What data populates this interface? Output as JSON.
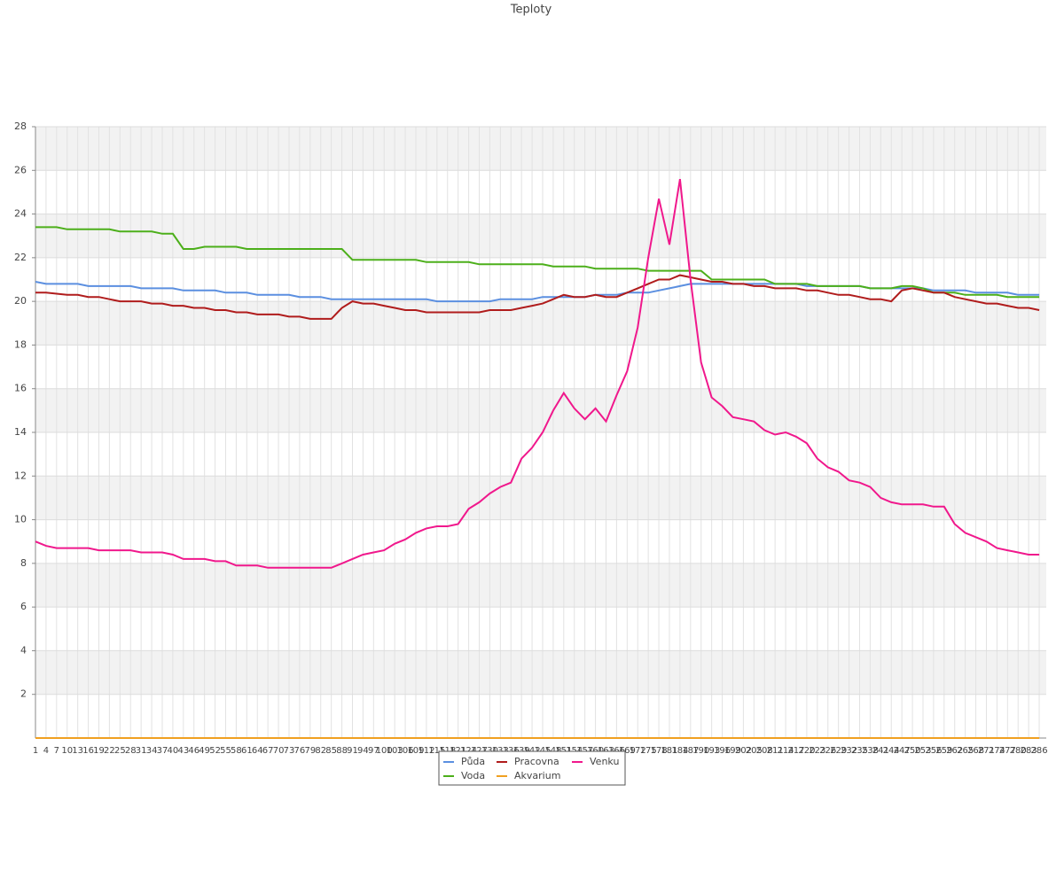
{
  "chart_data": {
    "type": "line",
    "title": "Teploty",
    "x": [
      1,
      4,
      7,
      10,
      13,
      16,
      19,
      22,
      25,
      28,
      31,
      34,
      37,
      40,
      43,
      46,
      49,
      52,
      55,
      58,
      61,
      64,
      67,
      70,
      73,
      76,
      79,
      82,
      85,
      88,
      91,
      94,
      97,
      100,
      103,
      106,
      109,
      112,
      115,
      118,
      121,
      124,
      127,
      130,
      133,
      136,
      139,
      142,
      145,
      148,
      151,
      154,
      157,
      160,
      163,
      166,
      169,
      172,
      175,
      178,
      181,
      184,
      187,
      190,
      193,
      196,
      199,
      202,
      205,
      208,
      211,
      214,
      217,
      220,
      223,
      226,
      229,
      232,
      235,
      238,
      241,
      244,
      247,
      250,
      253,
      256,
      259,
      262,
      265,
      268,
      271,
      274,
      277,
      280,
      283,
      286
    ],
    "xlim": [
      1,
      288
    ],
    "ylim": [
      0,
      28
    ],
    "yticks": [
      2,
      4,
      6,
      8,
      10,
      12,
      14,
      16,
      18,
      20,
      22,
      24,
      26,
      28
    ],
    "grid": true,
    "series": [
      {
        "name": "Půda",
        "color": "#5b8fe0",
        "values": [
          20.9,
          20.8,
          20.8,
          20.8,
          20.8,
          20.7,
          20.7,
          20.7,
          20.7,
          20.7,
          20.6,
          20.6,
          20.6,
          20.6,
          20.5,
          20.5,
          20.5,
          20.5,
          20.4,
          20.4,
          20.4,
          20.3,
          20.3,
          20.3,
          20.3,
          20.2,
          20.2,
          20.2,
          20.1,
          20.1,
          20.1,
          20.1,
          20.1,
          20.1,
          20.1,
          20.1,
          20.1,
          20.1,
          20.0,
          20.0,
          20.0,
          20.0,
          20.0,
          20.0,
          20.1,
          20.1,
          20.1,
          20.1,
          20.2,
          20.2,
          20.2,
          20.2,
          20.2,
          20.3,
          20.3,
          20.3,
          20.4,
          20.4,
          20.4,
          20.5,
          20.6,
          20.7,
          20.8,
          20.8,
          20.8,
          20.8,
          20.8,
          20.8,
          20.8,
          20.8,
          20.8,
          20.8,
          20.8,
          20.7,
          20.7,
          20.7,
          20.7,
          20.7,
          20.7,
          20.6,
          20.6,
          20.6,
          20.6,
          20.6,
          20.6,
          20.5,
          20.5,
          20.5,
          20.5,
          20.4,
          20.4,
          20.4,
          20.4,
          20.3,
          20.3,
          20.3
        ]
      },
      {
        "name": "Voda",
        "color": "#4caf1a",
        "values": [
          23.4,
          23.4,
          23.4,
          23.3,
          23.3,
          23.3,
          23.3,
          23.3,
          23.2,
          23.2,
          23.2,
          23.2,
          23.1,
          23.1,
          22.4,
          22.4,
          22.5,
          22.5,
          22.5,
          22.5,
          22.4,
          22.4,
          22.4,
          22.4,
          22.4,
          22.4,
          22.4,
          22.4,
          22.4,
          22.4,
          21.9,
          21.9,
          21.9,
          21.9,
          21.9,
          21.9,
          21.9,
          21.8,
          21.8,
          21.8,
          21.8,
          21.8,
          21.7,
          21.7,
          21.7,
          21.7,
          21.7,
          21.7,
          21.7,
          21.6,
          21.6,
          21.6,
          21.6,
          21.5,
          21.5,
          21.5,
          21.5,
          21.5,
          21.4,
          21.4,
          21.4,
          21.4,
          21.4,
          21.4,
          21.0,
          21.0,
          21.0,
          21.0,
          21.0,
          21.0,
          20.8,
          20.8,
          20.8,
          20.8,
          20.7,
          20.7,
          20.7,
          20.7,
          20.7,
          20.6,
          20.6,
          20.6,
          20.7,
          20.7,
          20.6,
          20.4,
          20.4,
          20.4,
          20.3,
          20.3,
          20.3,
          20.3,
          20.2,
          20.2,
          20.2,
          20.2
        ]
      },
      {
        "name": "Pracovna",
        "color": "#b01c1c",
        "values": [
          20.4,
          20.4,
          20.35,
          20.3,
          20.3,
          20.2,
          20.2,
          20.1,
          20.0,
          20.0,
          20.0,
          19.9,
          19.9,
          19.8,
          19.8,
          19.7,
          19.7,
          19.6,
          19.6,
          19.5,
          19.5,
          19.4,
          19.4,
          19.4,
          19.3,
          19.3,
          19.2,
          19.2,
          19.2,
          19.7,
          20.0,
          19.9,
          19.9,
          19.8,
          19.7,
          19.6,
          19.6,
          19.5,
          19.5,
          19.5,
          19.5,
          19.5,
          19.5,
          19.6,
          19.6,
          19.6,
          19.7,
          19.8,
          19.9,
          20.1,
          20.3,
          20.2,
          20.2,
          20.3,
          20.2,
          20.2,
          20.4,
          20.6,
          20.8,
          21.0,
          21.0,
          21.2,
          21.1,
          21.0,
          20.9,
          20.9,
          20.8,
          20.8,
          20.7,
          20.7,
          20.6,
          20.6,
          20.6,
          20.5,
          20.5,
          20.4,
          20.3,
          20.3,
          20.2,
          20.1,
          20.1,
          20.0,
          20.5,
          20.6,
          20.5,
          20.4,
          20.4,
          20.2,
          20.1,
          20.0,
          19.9,
          19.9,
          19.8,
          19.7,
          19.7,
          19.6
        ]
      },
      {
        "name": "Akvarium",
        "color": "#f0a020",
        "values": [
          0,
          0,
          0,
          0,
          0,
          0,
          0,
          0,
          0,
          0,
          0,
          0,
          0,
          0,
          0,
          0,
          0,
          0,
          0,
          0,
          0,
          0,
          0,
          0,
          0,
          0,
          0,
          0,
          0,
          0,
          0,
          0,
          0,
          0,
          0,
          0,
          0,
          0,
          0,
          0,
          0,
          0,
          0,
          0,
          0,
          0,
          0,
          0,
          0,
          0,
          0,
          0,
          0,
          0,
          0,
          0,
          0,
          0,
          0,
          0,
          0,
          0,
          0,
          0,
          0,
          0,
          0,
          0,
          0,
          0,
          0,
          0,
          0,
          0,
          0,
          0,
          0,
          0,
          0,
          0,
          0,
          0,
          0,
          0,
          0,
          0,
          0,
          0,
          0,
          0,
          0,
          0,
          0,
          0,
          0,
          0
        ]
      },
      {
        "name": "Venku",
        "color": "#f0188c",
        "values": [
          9.0,
          8.8,
          8.7,
          8.7,
          8.7,
          8.7,
          8.6,
          8.6,
          8.6,
          8.6,
          8.5,
          8.5,
          8.5,
          8.4,
          8.2,
          8.2,
          8.2,
          8.1,
          8.1,
          7.9,
          7.9,
          7.9,
          7.8,
          7.8,
          7.8,
          7.8,
          7.8,
          7.8,
          7.8,
          8.0,
          8.2,
          8.4,
          8.5,
          8.6,
          8.9,
          9.1,
          9.4,
          9.6,
          9.7,
          9.7,
          9.8,
          10.5,
          10.8,
          11.2,
          11.5,
          11.7,
          12.8,
          13.3,
          14.0,
          15.0,
          15.8,
          15.1,
          14.6,
          15.1,
          14.5,
          15.7,
          16.8,
          18.8,
          22.0,
          24.7,
          22.6,
          25.6,
          21.0,
          17.2,
          15.6,
          15.2,
          14.7,
          14.6,
          14.5,
          14.1,
          13.9,
          14.0,
          13.8,
          13.5,
          12.8,
          12.4,
          12.2,
          11.8,
          11.7,
          11.5,
          11.0,
          10.8,
          10.7,
          10.7,
          10.7,
          10.6,
          10.6,
          9.8,
          9.4,
          9.2,
          9.0,
          8.7,
          8.6,
          8.5,
          8.4,
          8.4
        ]
      }
    ]
  }
}
